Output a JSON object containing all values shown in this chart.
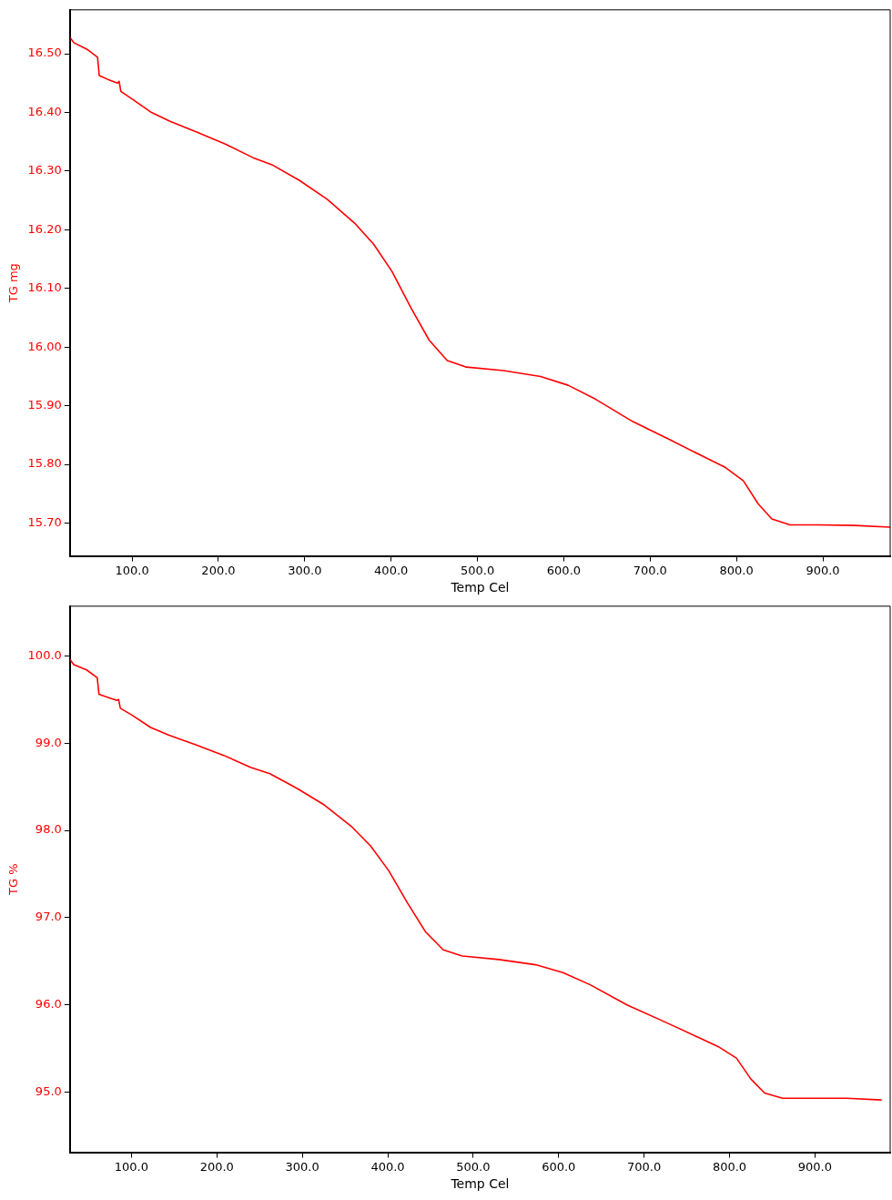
{
  "chart_data": [
    {
      "type": "line",
      "xlabel": "Temp Cel",
      "ylabel": "TG mg",
      "grid": false,
      "legend": false,
      "marker": "none",
      "line_style": "solid",
      "xlim": [
        28,
        978
      ],
      "ylim": [
        15.644,
        16.575
      ],
      "xticks": [
        {
          "value": 100,
          "label": "100.0"
        },
        {
          "value": 200,
          "label": "200.0"
        },
        {
          "value": 300,
          "label": "300.0"
        },
        {
          "value": 400,
          "label": "400.0"
        },
        {
          "value": 500,
          "label": "500.0"
        },
        {
          "value": 600,
          "label": "600.0"
        },
        {
          "value": 700,
          "label": "700.0"
        },
        {
          "value": 800,
          "label": "800.0"
        },
        {
          "value": 900,
          "label": "900.0"
        }
      ],
      "yticks": [
        {
          "value": 15.7,
          "label": "15.70"
        },
        {
          "value": 15.8,
          "label": "15.80"
        },
        {
          "value": 15.9,
          "label": "15.90"
        },
        {
          "value": 16.0,
          "label": "16.00"
        },
        {
          "value": 16.1,
          "label": "16.10"
        },
        {
          "value": 16.2,
          "label": "16.20"
        },
        {
          "value": 16.3,
          "label": "16.30"
        },
        {
          "value": 16.4,
          "label": "16.40"
        },
        {
          "value": 16.5,
          "label": "16.50"
        }
      ],
      "x": [
        28,
        32.5,
        47.5,
        60,
        62,
        74,
        83,
        85,
        87,
        101,
        122.5,
        144,
        176,
        208,
        240,
        262,
        294,
        326,
        358,
        380,
        401,
        423,
        444,
        465,
        487,
        530,
        573,
        605,
        637,
        680,
        723,
        765,
        787,
        808,
        825,
        841,
        862,
        894,
        937,
        978
      ],
      "series": [
        {
          "color": "#ff0000",
          "values": [
            16.528,
            16.519,
            16.508,
            16.494,
            16.463,
            16.455,
            16.45,
            16.453,
            16.436,
            16.422,
            16.4,
            16.385,
            16.366,
            16.346,
            16.323,
            16.311,
            16.284,
            16.252,
            16.211,
            16.175,
            16.129,
            16.067,
            16.012,
            15.977,
            15.966,
            15.96,
            15.95,
            15.935,
            15.911,
            15.873,
            15.842,
            15.811,
            15.795,
            15.772,
            15.733,
            15.707,
            15.697,
            15.697,
            15.696,
            15.693
          ]
        }
      ]
    },
    {
      "type": "line",
      "xlabel": "Temp Cel",
      "ylabel": "TG %",
      "grid": false,
      "legend": false,
      "marker": "none",
      "line_style": "solid",
      "xlim": [
        28,
        988
      ],
      "ylim": [
        94.31,
        100.57
      ],
      "xticks": [
        {
          "value": 100,
          "label": "100.0"
        },
        {
          "value": 200,
          "label": "200.0"
        },
        {
          "value": 300,
          "label": "300.0"
        },
        {
          "value": 400,
          "label": "400.0"
        },
        {
          "value": 500,
          "label": "500.0"
        },
        {
          "value": 600,
          "label": "600.0"
        },
        {
          "value": 700,
          "label": "700.0"
        },
        {
          "value": 800,
          "label": "800.0"
        },
        {
          "value": 900,
          "label": "900.0"
        }
      ],
      "yticks": [
        {
          "value": 95,
          "label": "95.0"
        },
        {
          "value": 96,
          "label": "96.0"
        },
        {
          "value": 97,
          "label": "97.0"
        },
        {
          "value": 98,
          "label": "98.0"
        },
        {
          "value": 99,
          "label": "99.0"
        },
        {
          "value": 100,
          "label": "100.0"
        }
      ],
      "x": [
        28,
        32.5,
        47.5,
        60,
        62,
        74,
        83,
        85,
        87,
        101,
        122.5,
        144,
        176,
        208,
        240,
        262,
        294,
        326,
        358,
        380,
        401,
        423,
        444,
        465,
        487,
        530,
        573,
        605,
        637,
        680,
        723,
        765,
        787,
        808,
        825,
        841,
        862,
        894,
        937,
        978
      ],
      "series": [
        {
          "color": "#ff0000",
          "values": [
            99.96,
            99.9,
            99.84,
            99.75,
            99.56,
            99.52,
            99.49,
            99.5,
            99.4,
            99.32,
            99.18,
            99.09,
            98.98,
            98.86,
            98.72,
            98.65,
            98.48,
            98.29,
            98.04,
            97.82,
            97.54,
            97.17,
            96.84,
            96.63,
            96.56,
            96.52,
            96.46,
            96.37,
            96.23,
            96.0,
            95.81,
            95.62,
            95.52,
            95.39,
            95.15,
            94.99,
            94.93,
            94.93,
            94.93,
            94.91
          ]
        }
      ]
    }
  ]
}
